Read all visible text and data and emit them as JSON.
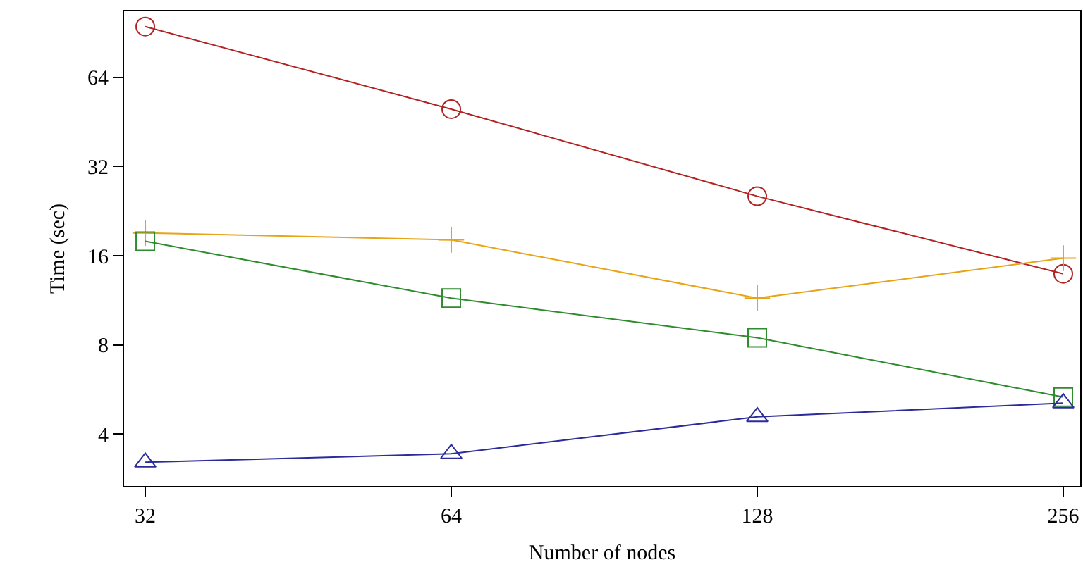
{
  "chart_data": {
    "type": "line",
    "xlabel": "Number of nodes",
    "ylabel": "Time (sec)",
    "log": "xy",
    "x": [
      32,
      64,
      128,
      256
    ],
    "xlim": [
      30.5,
      266
    ],
    "xticks": [
      32,
      64,
      128,
      256
    ],
    "ylim": [
      2.67,
      107
    ],
    "yticks": [
      4,
      8,
      16,
      32,
      64
    ],
    "grid": false,
    "line_style": "solid",
    "series": [
      {
        "color": "#b22222",
        "marker": "circle",
        "values": [
          95,
          50,
          25.4,
          13.9
        ]
      },
      {
        "color": "#e8a317",
        "marker": "cross",
        "values": [
          19.1,
          18.1,
          11.5,
          15.7
        ]
      },
      {
        "color": "#2e8b2e",
        "marker": "square",
        "values": [
          17.9,
          11.5,
          8.45,
          5.33
        ]
      },
      {
        "color": "#2b2b9b",
        "marker": "triangle",
        "values": [
          3.21,
          3.43,
          4.57,
          5.09
        ]
      }
    ]
  }
}
